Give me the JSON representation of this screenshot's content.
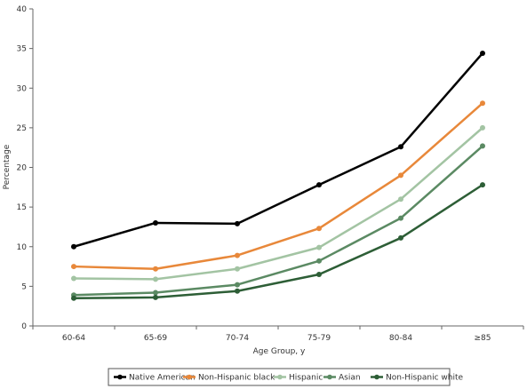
{
  "chart_data": {
    "type": "line",
    "title": "",
    "xlabel": "Age Group, y",
    "ylabel": "Percentage",
    "ylim": [
      0,
      40
    ],
    "yticks": [
      0,
      5,
      10,
      15,
      20,
      25,
      30,
      35,
      40
    ],
    "categories": [
      "60-64",
      "65-69",
      "70-74",
      "75-79",
      "80-84",
      "≥85"
    ],
    "grid": false,
    "legend_position": "bottom",
    "series": [
      {
        "name": "Native American",
        "color": "#000000",
        "values": [
          10.0,
          13.0,
          12.9,
          17.8,
          22.6,
          34.4
        ]
      },
      {
        "name": "Non-Hispanic black",
        "color": "#e8883a",
        "values": [
          7.5,
          7.2,
          8.9,
          12.3,
          19.0,
          28.1
        ]
      },
      {
        "name": "Hispanic",
        "color": "#a3c4a3",
        "values": [
          6.0,
          5.9,
          7.2,
          9.9,
          16.0,
          25.0
        ]
      },
      {
        "name": "Asian",
        "color": "#5b8a63",
        "values": [
          3.9,
          4.2,
          5.2,
          8.2,
          13.6,
          22.7
        ]
      },
      {
        "name": "Non-Hispanic white",
        "color": "#2d5e36",
        "values": [
          3.5,
          3.6,
          4.4,
          6.5,
          11.1,
          17.8
        ]
      }
    ]
  }
}
